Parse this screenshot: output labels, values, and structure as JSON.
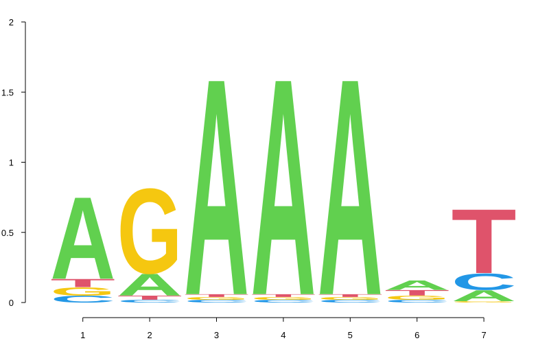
{
  "chart_data": {
    "type": "sequence-logo",
    "title": "",
    "xlabel": "",
    "ylabel": "",
    "ylim": [
      0,
      2
    ],
    "y_ticks": [
      "0",
      "0.5",
      "1",
      "1.5",
      "2"
    ],
    "y_tick_values": [
      0,
      0.5,
      1,
      1.5,
      2
    ],
    "x_ticks": [
      "1",
      "2",
      "3",
      "4",
      "5",
      "6",
      "7"
    ],
    "colors": {
      "A": "#61d04f",
      "C": "#2297e6",
      "G": "#f5c710",
      "T": "#df536b"
    },
    "positions": [
      {
        "position": "1",
        "letters": [
          {
            "letter": "C",
            "height": 0.05
          },
          {
            "letter": "G",
            "height": 0.06
          },
          {
            "letter": "T",
            "height": 0.06
          },
          {
            "letter": "A",
            "height": 0.6
          }
        ]
      },
      {
        "position": "2",
        "letters": [
          {
            "letter": "C",
            "height": 0.02
          },
          {
            "letter": "T",
            "height": 0.03
          },
          {
            "letter": "A",
            "height": 0.16
          },
          {
            "letter": "G",
            "height": 0.62
          }
        ]
      },
      {
        "position": "3",
        "letters": [
          {
            "letter": "C",
            "height": 0.02
          },
          {
            "letter": "G",
            "height": 0.02
          },
          {
            "letter": "T",
            "height": 0.02
          },
          {
            "letter": "A",
            "height": 1.58
          }
        ]
      },
      {
        "position": "4",
        "letters": [
          {
            "letter": "C",
            "height": 0.02
          },
          {
            "letter": "G",
            "height": 0.02
          },
          {
            "letter": "T",
            "height": 0.02
          },
          {
            "letter": "A",
            "height": 1.58
          }
        ]
      },
      {
        "position": "5",
        "letters": [
          {
            "letter": "C",
            "height": 0.02
          },
          {
            "letter": "G",
            "height": 0.02
          },
          {
            "letter": "T",
            "height": 0.02
          },
          {
            "letter": "A",
            "height": 1.58
          }
        ]
      },
      {
        "position": "6",
        "letters": [
          {
            "letter": "C",
            "height": 0.02
          },
          {
            "letter": "G",
            "height": 0.03
          },
          {
            "letter": "T",
            "height": 0.04
          },
          {
            "letter": "A",
            "height": 0.07
          }
        ]
      },
      {
        "position": "7",
        "letters": [
          {
            "letter": "G",
            "height": 0.01
          },
          {
            "letter": "A",
            "height": 0.08
          },
          {
            "letter": "C",
            "height": 0.12
          },
          {
            "letter": "T",
            "height": 0.47
          }
        ]
      }
    ]
  }
}
